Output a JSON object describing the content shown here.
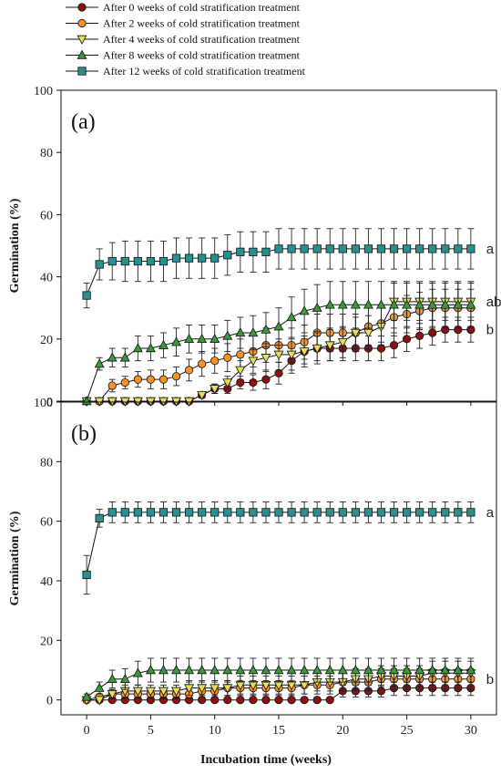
{
  "legend": [
    {
      "label": "After 0 weeks of cold stratification treatment",
      "color": "#8b1010",
      "marker": "circle"
    },
    {
      "label": "After 2 weeks of cold stratification treatment",
      "color": "#f7922a",
      "marker": "circle"
    },
    {
      "label": "After 4 weeks of cold stratification treatment",
      "color": "#e4e05a",
      "marker": "triangle-down"
    },
    {
      "label": "After 8 weeks of cold stratification treatment",
      "color": "#3a9a3a",
      "marker": "triangle-up"
    },
    {
      "label": "After 12 weeks of cold stratification treatment",
      "color": "#2a8f8f",
      "marker": "square"
    }
  ],
  "chart_data": [
    {
      "type": "line",
      "panel_label": "(a)",
      "ylabel": "Germination (%)",
      "xlim": [
        -2,
        32
      ],
      "ylim": [
        0,
        100
      ],
      "xticks": [
        0,
        5,
        10,
        15,
        20,
        25,
        30
      ],
      "yticks": [
        0,
        20,
        40,
        60,
        80,
        100
      ],
      "x": [
        0,
        1,
        2,
        3,
        4,
        5,
        6,
        7,
        8,
        9,
        10,
        11,
        12,
        13,
        14,
        15,
        16,
        17,
        18,
        19,
        20,
        21,
        22,
        23,
        24,
        25,
        26,
        27,
        28,
        29,
        30
      ],
      "series": [
        {
          "legend_index": 0,
          "values": [
            0,
            0,
            0,
            0,
            0,
            0,
            0,
            0,
            0,
            2,
            4,
            4,
            6,
            6,
            7,
            9,
            13,
            16,
            17,
            17,
            17,
            17,
            17,
            17,
            18,
            20,
            21,
            22,
            23,
            23,
            23
          ],
          "error": [
            0,
            0,
            0,
            0,
            0,
            0,
            0,
            0,
            0,
            1,
            1.5,
            1.5,
            2,
            2.5,
            3,
            3.5,
            4,
            4,
            4,
            4,
            4,
            4,
            4,
            4,
            4,
            4,
            4,
            4,
            4,
            4,
            4
          ]
        },
        {
          "legend_index": 1,
          "values": [
            0,
            0,
            5,
            6,
            7,
            7,
            7,
            8,
            10,
            12,
            13,
            14,
            15,
            16,
            18,
            18,
            18,
            19,
            22,
            22,
            22,
            22,
            24,
            25,
            27,
            28,
            29,
            30,
            30,
            30,
            30
          ],
          "error": [
            0,
            0,
            2,
            2,
            2.5,
            3,
            3,
            3,
            3.5,
            4,
            4,
            4.5,
            5,
            5,
            5.5,
            5.5,
            5.5,
            5.5,
            6,
            6,
            6,
            6,
            6,
            6,
            6,
            6,
            6,
            6,
            6,
            6,
            6
          ]
        },
        {
          "legend_index": 2,
          "values": [
            0,
            0,
            0,
            0,
            0,
            0,
            0,
            0,
            0,
            2,
            4,
            6,
            10,
            13,
            14,
            15,
            15,
            16,
            17,
            18,
            19,
            22,
            22,
            24,
            32,
            32,
            32,
            32,
            32,
            32,
            32
          ],
          "error": [
            0,
            0,
            0,
            0,
            0,
            0,
            0,
            0,
            0,
            1,
            1.5,
            2,
            3,
            4,
            4.5,
            5,
            5,
            5,
            5,
            5,
            5,
            5,
            5.5,
            6,
            6,
            6,
            6,
            6,
            6,
            6,
            6
          ]
        },
        {
          "legend_index": 3,
          "values": [
            0,
            12,
            14,
            14,
            17,
            17,
            18,
            19,
            20,
            20,
            20,
            21,
            22,
            22,
            23,
            24,
            27,
            29,
            30,
            31,
            31,
            31,
            31,
            31,
            31,
            31,
            31,
            31,
            31,
            31,
            31
          ],
          "error": [
            0,
            2,
            3,
            3,
            4,
            4,
            4,
            4.5,
            4.5,
            4.5,
            4.5,
            5,
            5,
            5.5,
            5.5,
            6,
            6.5,
            7,
            7.5,
            7.5,
            7.5,
            7.5,
            7.5,
            7.5,
            7.5,
            7.5,
            7.5,
            7.5,
            7.5,
            7.5,
            7.5
          ]
        },
        {
          "legend_index": 4,
          "values": [
            34,
            44,
            45,
            45,
            45,
            45,
            45,
            46,
            46,
            46,
            46,
            47,
            48,
            48,
            48,
            49,
            49,
            49,
            49,
            49,
            49,
            49,
            49,
            49,
            49,
            49,
            49,
            49,
            49,
            49,
            49
          ],
          "error": [
            4,
            5,
            6,
            6.5,
            6.5,
            6.5,
            6.5,
            6.5,
            6.5,
            6.5,
            6.5,
            6.5,
            6.5,
            6.5,
            6.5,
            6.5,
            6.5,
            6.5,
            6.5,
            6.5,
            6.5,
            6.5,
            6.5,
            6.5,
            6.5,
            6.5,
            6.5,
            6.5,
            6.5,
            6.5,
            6.5
          ]
        }
      ],
      "annotations": [
        {
          "text": "a",
          "x": 31.2,
          "y": 49
        },
        {
          "text": "ab",
          "x": 31.2,
          "y": 32
        },
        {
          "text": "b",
          "x": 31.2,
          "y": 23
        }
      ]
    },
    {
      "type": "line",
      "panel_label": "(b)",
      "ylabel": "Germination (%)",
      "xlabel": "Incubation time (weeks)",
      "xlim": [
        -2,
        32
      ],
      "ylim": [
        -5,
        100
      ],
      "xticks": [
        0,
        5,
        10,
        15,
        20,
        25,
        30
      ],
      "yticks": [
        0,
        20,
        40,
        60,
        80,
        100
      ],
      "x": [
        0,
        1,
        2,
        3,
        4,
        5,
        6,
        7,
        8,
        9,
        10,
        11,
        12,
        13,
        14,
        15,
        16,
        17,
        18,
        19,
        20,
        21,
        22,
        23,
        24,
        25,
        26,
        27,
        28,
        29,
        30
      ],
      "series": [
        {
          "legend_index": 0,
          "values": [
            0,
            0,
            0,
            0,
            0,
            0,
            0,
            0,
            0,
            0,
            0,
            0,
            0,
            0,
            0,
            0,
            0,
            0,
            0,
            0,
            3,
            3,
            3,
            3,
            4,
            4,
            4,
            4,
            4,
            4,
            4
          ],
          "error": [
            0,
            0,
            0,
            0,
            0,
            0,
            0,
            0,
            0,
            0,
            0,
            0,
            0,
            0,
            0,
            0,
            0,
            0,
            0,
            0,
            2,
            2,
            2,
            2,
            2.5,
            2.5,
            2.5,
            2.5,
            2.5,
            2.5,
            2.5
          ]
        },
        {
          "legend_index": 1,
          "values": [
            0,
            1,
            2,
            2,
            2,
            2,
            2,
            2,
            2,
            3,
            3,
            4,
            4,
            4,
            4,
            4,
            4,
            5,
            5,
            5,
            6,
            6,
            6,
            7,
            7,
            7,
            7,
            7,
            7,
            7,
            7
          ],
          "error": [
            0,
            1,
            1.5,
            1.5,
            1.5,
            1.5,
            1.5,
            1.5,
            1.5,
            2,
            2,
            2.5,
            2.5,
            2.5,
            2.5,
            2.5,
            2.5,
            3,
            3,
            3,
            3,
            3,
            3,
            3.5,
            3.5,
            3.5,
            3.5,
            3.5,
            3.5,
            3.5,
            3.5
          ]
        },
        {
          "legend_index": 2,
          "values": [
            0,
            0,
            2,
            3,
            3,
            3,
            3,
            3,
            4,
            4,
            4,
            4,
            5,
            5,
            5,
            5,
            5,
            5,
            6,
            6,
            6,
            7,
            7,
            8,
            8,
            8,
            8,
            9,
            9,
            9,
            9
          ],
          "error": [
            0,
            0,
            1.5,
            2,
            2,
            2,
            2,
            2,
            2.5,
            2.5,
            2.5,
            2.5,
            3,
            3,
            3,
            3,
            3,
            3,
            3,
            3,
            3,
            3.5,
            3.5,
            3.5,
            3.5,
            3.5,
            3.5,
            4,
            4,
            4,
            4
          ]
        },
        {
          "legend_index": 3,
          "values": [
            1,
            4,
            7,
            7,
            9,
            10,
            10,
            10,
            10,
            10,
            10,
            10,
            10,
            10,
            10,
            10,
            10,
            10,
            10,
            10,
            10,
            10,
            10,
            10,
            10,
            10,
            10,
            10,
            10,
            10,
            10
          ],
          "error": [
            1,
            2,
            3,
            3.5,
            4,
            4,
            4,
            4,
            4,
            4,
            4,
            4,
            4,
            4,
            4,
            4,
            4,
            4,
            4,
            4,
            4,
            4,
            4,
            4,
            4,
            4,
            4,
            4,
            4,
            4,
            4
          ]
        },
        {
          "legend_index": 4,
          "values": [
            42,
            61,
            63,
            63,
            63,
            63,
            63,
            63,
            63,
            63,
            63,
            63,
            63,
            63,
            63,
            63,
            63,
            63,
            63,
            63,
            63,
            63,
            63,
            63,
            63,
            63,
            63,
            63,
            63,
            63,
            63
          ],
          "error": [
            6.5,
            3,
            3.5,
            3.5,
            3.5,
            3.5,
            3.5,
            3.5,
            3.5,
            3.5,
            3.5,
            3.5,
            3.5,
            3.5,
            3.5,
            3.5,
            3.5,
            3.5,
            3.5,
            3.5,
            3.5,
            3.5,
            3.5,
            3.5,
            3.5,
            3.5,
            3.5,
            3.5,
            3.5,
            3.5,
            3.5
          ]
        }
      ],
      "annotations": [
        {
          "text": "a",
          "x": 31.2,
          "y": 63
        },
        {
          "text": "b",
          "x": 31.2,
          "y": 7
        }
      ]
    }
  ]
}
